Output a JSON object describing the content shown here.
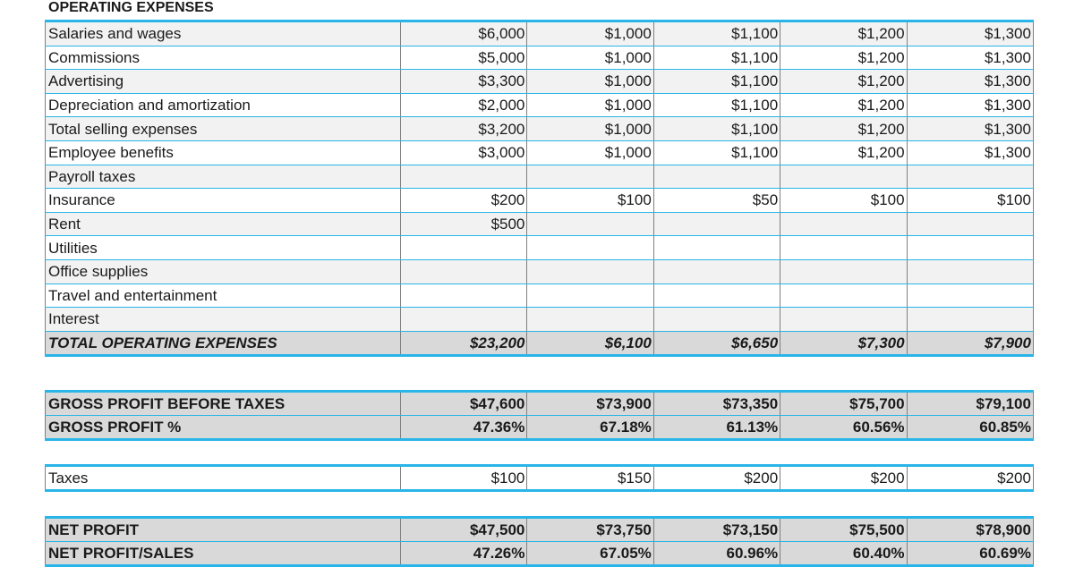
{
  "section_title": "OPERATING EXPENSES",
  "expense_rows": [
    {
      "label": "Salaries and wages",
      "values": [
        "$6,000",
        "$1,000",
        "$1,100",
        "$1,200",
        "$1,300"
      ]
    },
    {
      "label": "Commissions",
      "values": [
        "$5,000",
        "$1,000",
        "$1,100",
        "$1,200",
        "$1,300"
      ]
    },
    {
      "label": "Advertising",
      "values": [
        "$3,300",
        "$1,000",
        "$1,100",
        "$1,200",
        "$1,300"
      ]
    },
    {
      "label": "Depreciation and amortization",
      "values": [
        "$2,000",
        "$1,000",
        "$1,100",
        "$1,200",
        "$1,300"
      ]
    },
    {
      "label": "Total selling expenses",
      "values": [
        "$3,200",
        "$1,000",
        "$1,100",
        "$1,200",
        "$1,300"
      ]
    },
    {
      "label": "Employee benefits",
      "values": [
        "$3,000",
        "$1,000",
        "$1,100",
        "$1,200",
        "$1,300"
      ]
    },
    {
      "label": "Payroll taxes",
      "values": [
        "",
        "",
        "",
        "",
        ""
      ]
    },
    {
      "label": "Insurance",
      "values": [
        "$200",
        "$100",
        "$50",
        "$100",
        "$100"
      ]
    },
    {
      "label": "Rent",
      "values": [
        "$500",
        "",
        "",
        "",
        ""
      ]
    },
    {
      "label": "Utilities",
      "values": [
        "",
        "",
        "",
        "",
        ""
      ]
    },
    {
      "label": "Office supplies",
      "values": [
        "",
        "",
        "",
        "",
        ""
      ]
    },
    {
      "label": "Travel and entertainment",
      "values": [
        "",
        "",
        "",
        "",
        ""
      ]
    },
    {
      "label": "Interest",
      "values": [
        "",
        "",
        "",
        "",
        ""
      ]
    }
  ],
  "total_operating": {
    "label": "TOTAL OPERATING EXPENSES",
    "values": [
      "$23,200",
      "$6,100",
      "$6,650",
      "$7,300",
      "$7,900"
    ]
  },
  "gross_profit": {
    "label": "GROSS PROFIT BEFORE TAXES",
    "values": [
      "$47,600",
      "$73,900",
      "$73,350",
      "$75,700",
      "$79,100"
    ]
  },
  "gross_profit_pct": {
    "label": "GROSS PROFIT %",
    "values": [
      "47.36%",
      "67.18%",
      "61.13%",
      "60.56%",
      "60.85%"
    ]
  },
  "taxes": {
    "label": "Taxes",
    "values": [
      "$100",
      "$150",
      "$200",
      "$200",
      "$200"
    ]
  },
  "net_profit": {
    "label": "NET PROFIT",
    "values": [
      "$47,500",
      "$73,750",
      "$73,150",
      "$75,500",
      "$78,900"
    ]
  },
  "net_profit_sales": {
    "label": "NET PROFIT/SALES",
    "values": [
      "47.26%",
      "67.05%",
      "60.96%",
      "60.40%",
      "60.69%"
    ]
  }
}
